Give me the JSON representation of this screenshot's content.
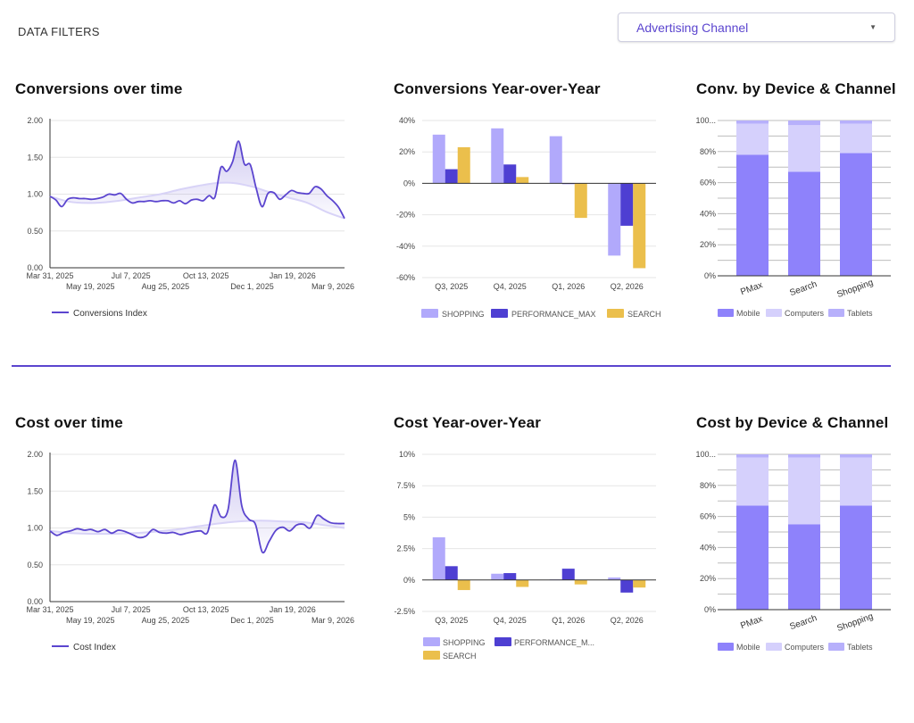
{
  "header": {
    "filters_label": "DATA FILTERS",
    "channel_filter": {
      "value": "Advertising Channel"
    }
  },
  "colors": {
    "accent": "#5b45cf",
    "line": "#5b45cf",
    "shopping": "#b1a9fb",
    "performance_max": "#4e3fd2",
    "search": "#ebbf4c",
    "mobile": "#8e82fb",
    "computers": "#d5d0fc",
    "tablets": "#b7b0fb",
    "divider": "#5b45cf"
  },
  "charts": {
    "conv_time": {
      "title": "Conversions over time"
    },
    "conv_yoy": {
      "title": "Conversions Year-over-Year"
    },
    "conv_device": {
      "title": "Conv. by Device & Channel"
    },
    "cost_time": {
      "title": "Cost over time"
    },
    "cost_yoy": {
      "title": "Cost Year-over-Year"
    },
    "cost_device": {
      "title": "Cost by Device & Channel"
    }
  },
  "chart_data": [
    {
      "id": "conv_time",
      "type": "line",
      "title": "Conversions over time",
      "ylim": [
        0,
        2
      ],
      "yticks": [
        0,
        0.5,
        1,
        1.5,
        2
      ],
      "ytick_labels": [
        "0.00",
        "0.50",
        "1.00",
        "1.50",
        "2.00"
      ],
      "xlim": [
        0,
        51
      ],
      "xticks": [
        0,
        7,
        14,
        20,
        27,
        35,
        42,
        49
      ],
      "xtick_labels": [
        "Mar 31, 2025",
        "May 19, 2025",
        "Jul 7, 2025",
        "Aug 25, 2025",
        "Oct 13, 2025",
        "Dec 1, 2025",
        "Jan 19, 2026",
        "Mar 9, 2026"
      ],
      "legend": [
        "Conversions Index"
      ],
      "series": [
        {
          "name": "Conversions Index",
          "values": [
            0.97,
            0.92,
            0.83,
            0.93,
            0.95,
            0.94,
            0.94,
            0.93,
            0.94,
            0.96,
            1.0,
            0.99,
            1.01,
            0.93,
            0.88,
            0.9,
            0.9,
            0.91,
            0.9,
            0.91,
            0.91,
            0.88,
            0.91,
            0.87,
            0.92,
            0.93,
            0.91,
            0.98,
            0.96,
            1.36,
            1.31,
            1.44,
            1.72,
            1.41,
            1.4,
            1.08,
            0.83,
            1.01,
            1.02,
            0.93,
            0.99,
            1.05,
            1.02,
            1.01,
            1.01,
            1.1,
            1.07,
            0.98,
            0.91,
            0.82,
            0.67
          ],
          "trend": [
            0.97,
            0.9,
            0.88,
            0.89,
            0.92,
            0.96,
            1.0,
            1.06,
            1.11,
            1.15,
            1.15,
            1.1,
            1.02,
            0.95,
            0.88,
            0.76,
            0.67
          ]
        }
      ]
    },
    {
      "id": "conv_yoy",
      "type": "bar",
      "title": "Conversions Year-over-Year",
      "categories": [
        "Q3, 2025",
        "Q4, 2025",
        "Q1, 2026",
        "Q2, 2026"
      ],
      "ylim": [
        -60,
        40
      ],
      "yticks": [
        -60,
        -40,
        -20,
        0,
        20,
        40
      ],
      "ytick_labels": [
        "-60%",
        "-40%",
        "-20%",
        "0%",
        "20%",
        "40%"
      ],
      "series": [
        {
          "name": "SHOPPING",
          "values": [
            31,
            35,
            30,
            -46
          ]
        },
        {
          "name": "PERFORMANCE_MAX",
          "values": [
            9,
            12,
            0,
            -27
          ]
        },
        {
          "name": "SEARCH",
          "values": [
            23,
            4,
            -22,
            -54
          ]
        }
      ]
    },
    {
      "id": "conv_device",
      "type": "bar",
      "stacked": true,
      "title": "Conv. by Device & Channel",
      "categories": [
        "PMax",
        "Search",
        "Shopping"
      ],
      "ylim": [
        0,
        100
      ],
      "yticks": [
        0,
        20,
        40,
        60,
        80,
        100
      ],
      "ytick_labels": [
        "0%",
        "20%",
        "40%",
        "60%",
        "80%",
        "100..."
      ],
      "series": [
        {
          "name": "Mobile",
          "values": [
            78,
            67,
            79
          ]
        },
        {
          "name": "Computers",
          "values": [
            20,
            30,
            19
          ]
        },
        {
          "name": "Tablets",
          "values": [
            2,
            3,
            2
          ]
        }
      ]
    },
    {
      "id": "cost_time",
      "type": "line",
      "title": "Cost over time",
      "ylim": [
        0,
        2
      ],
      "yticks": [
        0,
        0.5,
        1,
        1.5,
        2
      ],
      "ytick_labels": [
        "0.00",
        "0.50",
        "1.00",
        "1.50",
        "2.00"
      ],
      "xlim": [
        0,
        51
      ],
      "xticks": [
        0,
        7,
        14,
        20,
        27,
        35,
        42,
        49
      ],
      "xtick_labels": [
        "Mar 31, 2025",
        "May 19, 2025",
        "Jul 7, 2025",
        "Aug 25, 2025",
        "Oct 13, 2025",
        "Dec 1, 2025",
        "Jan 19, 2026",
        "Mar 9, 2026"
      ],
      "legend": [
        "Cost Index"
      ],
      "series": [
        {
          "name": "Cost Index",
          "values": [
            0.96,
            0.9,
            0.94,
            0.96,
            0.99,
            0.97,
            0.98,
            0.95,
            0.98,
            0.93,
            0.97,
            0.95,
            0.91,
            0.87,
            0.89,
            0.98,
            0.94,
            0.93,
            0.94,
            0.91,
            0.93,
            0.95,
            0.96,
            0.94,
            1.31,
            1.15,
            1.25,
            1.92,
            1.3,
            1.12,
            1.05,
            0.67,
            0.82,
            0.97,
            1.01,
            0.96,
            1.04,
            1.05,
            1.0,
            1.17,
            1.12,
            1.07,
            1.06,
            1.06
          ],
          "trend": [
            0.96,
            0.93,
            0.92,
            0.92,
            0.93,
            0.95,
            0.98,
            1.02,
            1.06,
            1.09,
            1.1,
            1.09,
            1.08,
            1.04,
            1.0
          ]
        }
      ]
    },
    {
      "id": "cost_yoy",
      "type": "bar",
      "title": "Cost Year-over-Year",
      "categories": [
        "Q3, 2025",
        "Q4, 2025",
        "Q1, 2026",
        "Q2, 2026"
      ],
      "ylim": [
        -2.5,
        10
      ],
      "yticks": [
        -2.5,
        0,
        2.5,
        5,
        7.5,
        10
      ],
      "ytick_labels": [
        "-2.5%",
        "0%",
        "2.5%",
        "5%",
        "7.5%",
        "10%"
      ],
      "series": [
        {
          "name": "SHOPPING",
          "values": [
            3.4,
            0.5,
            0.05,
            0.2
          ]
        },
        {
          "name": "PERFORMANCE_MAX",
          "values": [
            1.1,
            0.55,
            0.9,
            -1.0
          ]
        },
        {
          "name": "SEARCH",
          "values": [
            -0.8,
            -0.55,
            -0.35,
            -0.6
          ]
        }
      ],
      "legend_labels": [
        "SHOPPING",
        "PERFORMANCE_M...",
        "SEARCH"
      ]
    },
    {
      "id": "cost_device",
      "type": "bar",
      "stacked": true,
      "title": "Cost by Device & Channel",
      "categories": [
        "PMax",
        "Search",
        "Shopping"
      ],
      "ylim": [
        0,
        100
      ],
      "yticks": [
        0,
        20,
        40,
        60,
        80,
        100
      ],
      "ytick_labels": [
        "0%",
        "20%",
        "40%",
        "60%",
        "80%",
        "100..."
      ],
      "series": [
        {
          "name": "Mobile",
          "values": [
            67,
            55,
            67
          ]
        },
        {
          "name": "Computers",
          "values": [
            31,
            43,
            31
          ]
        },
        {
          "name": "Tablets",
          "values": [
            2,
            2,
            2
          ]
        }
      ]
    }
  ]
}
